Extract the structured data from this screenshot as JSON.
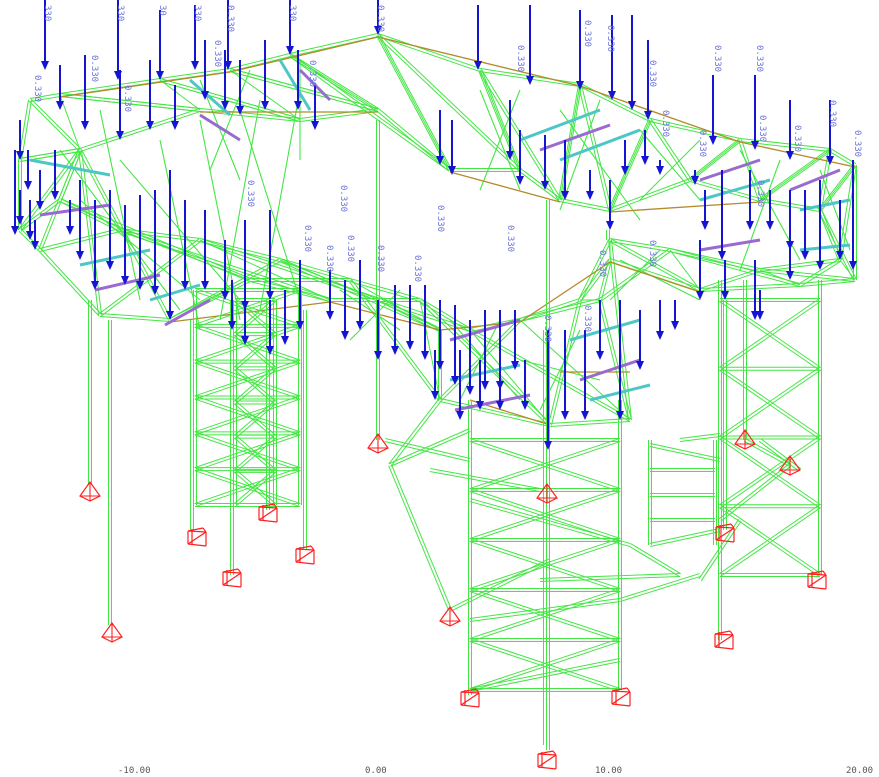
{
  "colors": {
    "background": "#ffffff",
    "member": "#44e644",
    "member_dark": "#2fbf2f",
    "beam_brown": "#b58a2a",
    "load_arrow": "#1414d2",
    "load_text": "#6a73d8",
    "support": "#ff2020",
    "cyan_member": "#4fc6c6",
    "purple_member": "#9a6ad0",
    "axis_text": "#555555"
  },
  "load": {
    "value_label": "0.330",
    "partial_labels": [
      "0.330",
      "330",
      "30",
      "330"
    ]
  },
  "axis": {
    "ticks": [
      "-10.00",
      "0.00",
      "10.00",
      "20.00"
    ]
  },
  "icons": {
    "support": "fixed-support-box-icon",
    "pinned": "pinned-support-pyramid-icon"
  }
}
